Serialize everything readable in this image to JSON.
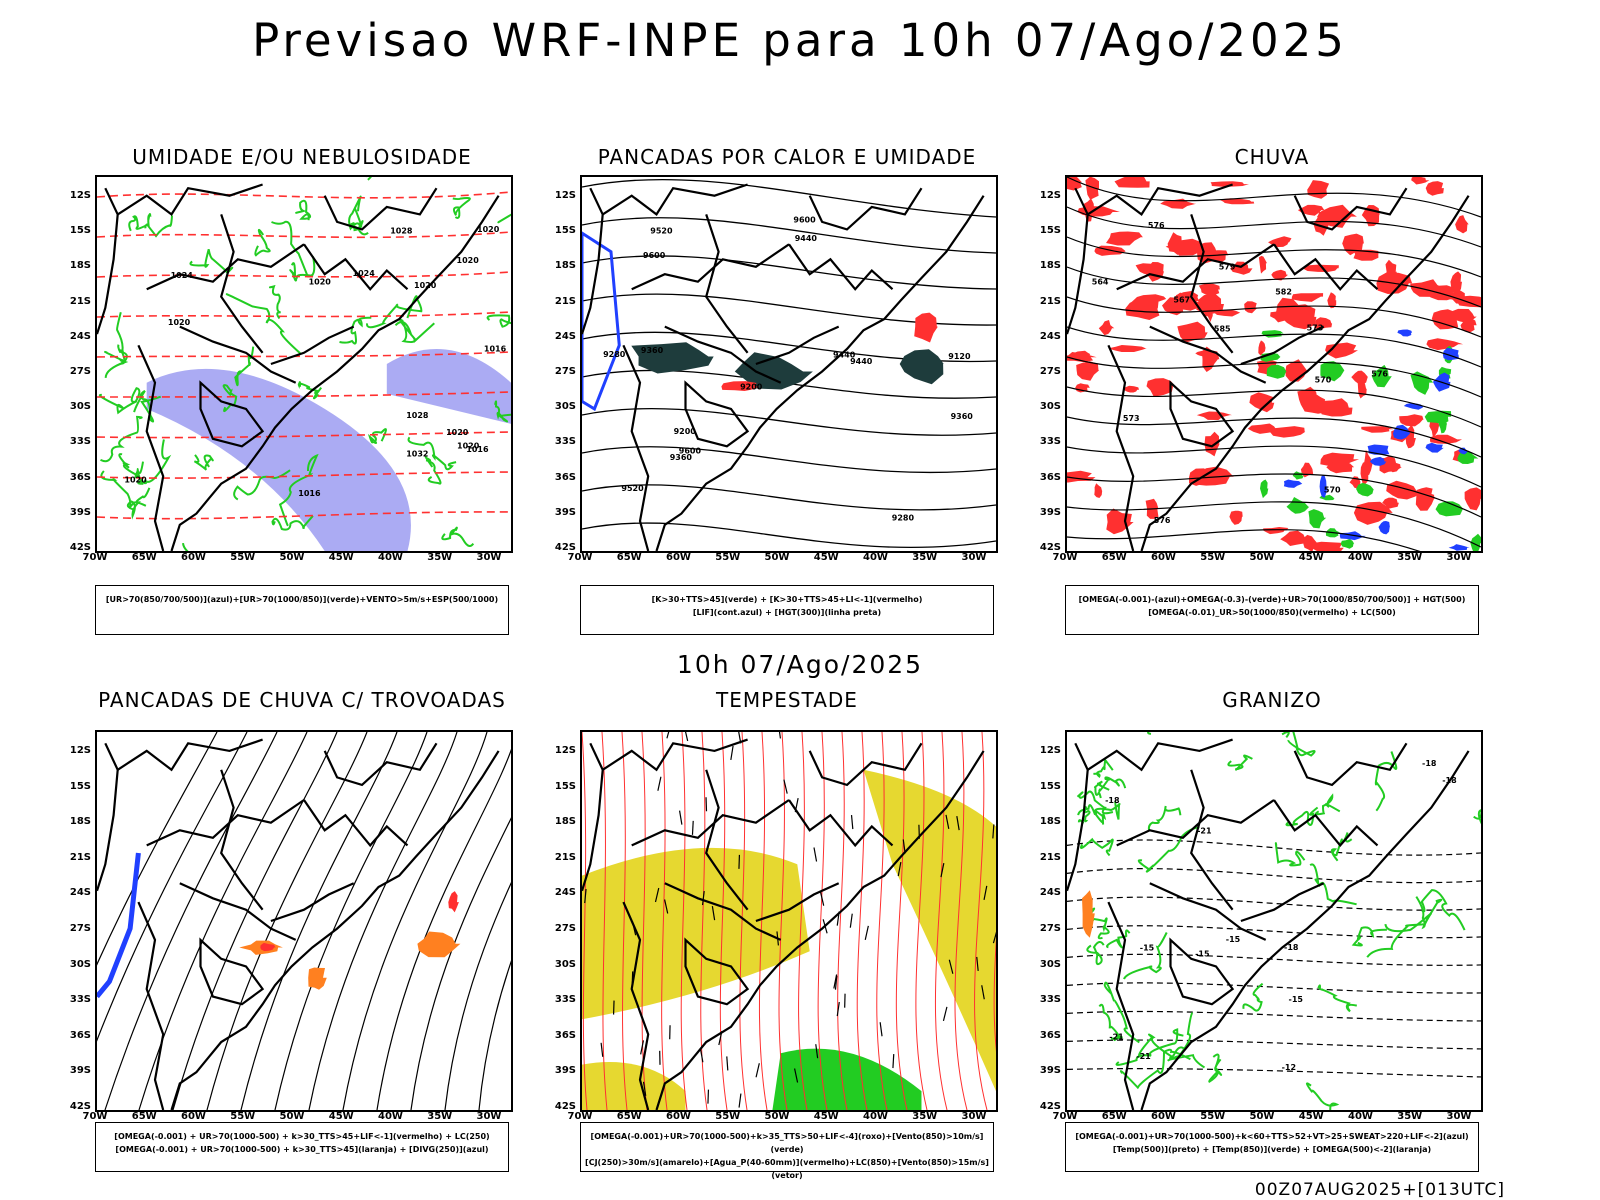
{
  "title": "Previsao WRF-INPE  para 10h 07/Ago/2025",
  "subtitle": "10h 07/Ago/2025",
  "footer_stamp": "00Z07AUG2025+[013UTC]",
  "lat_ticks": [
    "12S",
    "15S",
    "18S",
    "21S",
    "24S",
    "27S",
    "30S",
    "33S",
    "36S",
    "39S",
    "42S"
  ],
  "lon_ticks": [
    "70W",
    "65W",
    "60W",
    "55W",
    "50W",
    "45W",
    "40W",
    "35W",
    "30W"
  ],
  "colors": {
    "blue": "#2040ff",
    "green": "#22cc22",
    "red": "#ff3030",
    "orange": "#ff8020",
    "yellow": "#e6d830",
    "darkteal": "#1e3c3c",
    "lavender": "#8888ee"
  },
  "panels": [
    {
      "title": "UMIDADE E/OU NEBULOSIDADE",
      "legend": [
        "[UR>70(850/700/500)](azul)+[UR>70(1000/850)](verde)+VENTO>5m/s+ESP(500/1000)"
      ],
      "contour_labels": [
        "1020",
        "1016",
        "1016",
        "1020",
        "1020",
        "1024",
        "1020",
        "1020",
        "1024",
        "1028",
        "1028",
        "1032",
        "1020",
        "1020",
        "1020",
        "1016"
      ]
    },
    {
      "title": "PANCADAS POR CALOR E UMIDADE",
      "legend": [
        "[K>30+TTS>45](verde) + [K>30+TTS>45+LI<-1](vermelho)",
        "[LIF](cont.azul) + [HGT(300)](linha preta)"
      ],
      "contour_labels": [
        "9600",
        "9600",
        "9520",
        "9520",
        "9600",
        "9440",
        "9440",
        "9360",
        "9360",
        "9280",
        "9200",
        "9200",
        "9120",
        "9360",
        "9280",
        "9440"
      ]
    },
    {
      "title": "CHUVA",
      "legend": [
        "[OMEGA(-0.001)-(azul)+OMEGA(-0.3)-(verde)+UR>70(1000/850/700/500)] + HGT(500)",
        "[OMEGA(-0.01)_UR>50(1000/850)(vermelho) + LC(500)"
      ],
      "contour_labels": [
        "582",
        "579",
        "576",
        "573",
        "570",
        "567",
        "564",
        "570",
        "576",
        "573",
        "576",
        "585"
      ]
    },
    {
      "title": "PANCADAS DE CHUVA C/ TROVOADAS",
      "legend": [
        "[OMEGA(-0.001) + UR>70(1000-500) + k>30_TTS>45+LIF<-1](vermelho) + LC(250)",
        "[OMEGA(-0.001) + UR>70(1000-500) + k>30_TTS>45](laranja) + [DIVG(250)](azul)"
      ],
      "contour_labels": []
    },
    {
      "title": "TEMPESTADE",
      "legend": [
        "[OMEGA(-0.001)+UR>70(1000-500)+k>35_TTS>50+LIF<-4](roxo)+[Vento(850)>10m/s](verde)",
        "[CJ(250)>30m/s](amarelo)+[Agua_P(40-60mm)](vermelho)+LC(850)+[Vento(850)>15m/s](vetor)"
      ],
      "contour_labels": []
    },
    {
      "title": "GRANIZO",
      "legend": [
        "[OMEGA(-0.001)+UR>70(1000-500)+k<60+TTS>52+VT>25+SWEAT>220+LIF<-2](azul)",
        "[Temp(500)](preto) + [Temp(850)](verde) + [OMEGA(500)<-2](laranja)"
      ],
      "contour_labels": [
        "-18",
        "-12",
        "-15",
        "-15",
        "-15",
        "-18",
        "-21",
        "-18",
        "-18",
        "-21",
        "-21",
        "-15"
      ]
    }
  ]
}
